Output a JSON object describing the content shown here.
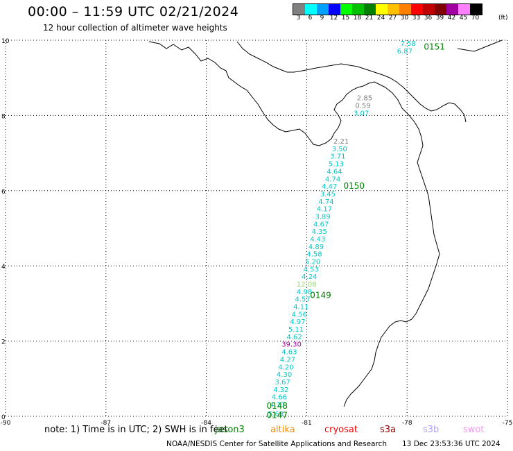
{
  "header": {
    "title": "00:00 – 11:59 UTC 02/21/2024",
    "subtitle": "12 hour collection of altimeter wave heights"
  },
  "legend": {
    "unit": "(ft)",
    "items": [
      {
        "label": "3",
        "color": "#808080"
      },
      {
        "label": "6",
        "color": "#00ffff"
      },
      {
        "label": "9",
        "color": "#00a0ff"
      },
      {
        "label": "12",
        "color": "#0000ff"
      },
      {
        "label": "15",
        "color": "#00ff00"
      },
      {
        "label": "18",
        "color": "#00c000"
      },
      {
        "label": "21",
        "color": "#008000"
      },
      {
        "label": "24",
        "color": "#ffff00"
      },
      {
        "label": "27",
        "color": "#ffc000"
      },
      {
        "label": "30",
        "color": "#ff8000"
      },
      {
        "label": "33",
        "color": "#ff0000"
      },
      {
        "label": "36",
        "color": "#c00000"
      },
      {
        "label": "39",
        "color": "#800000"
      },
      {
        "label": "42",
        "color": "#a000a0"
      },
      {
        "label": "45",
        "color": "#ff80ff"
      },
      {
        "label": "70",
        "color": "#000000"
      }
    ]
  },
  "axes": {
    "lon_ticks": [
      "-90",
      "-87",
      "-84",
      "-81",
      "-78",
      "-75"
    ],
    "lat_ticks": [
      "10",
      "8",
      "6",
      "4",
      "2",
      "0"
    ]
  },
  "passes": [
    {
      "label": "0151",
      "lon": -77.5,
      "lat": 9.75
    },
    {
      "label": "0150",
      "lon": -79.9,
      "lat": 6.05
    },
    {
      "label": "0149",
      "lon": -80.9,
      "lat": 3.15
    },
    {
      "label": "0148",
      "lon": -82.2,
      "lat": 0.2
    },
    {
      "label": "0147",
      "lon": -82.2,
      "lat": -0.05
    }
  ],
  "wave_heights": [
    {
      "v": "7.58",
      "lon": -78.2,
      "lat": 9.85,
      "c": "#00c8c8"
    },
    {
      "v": "6.87",
      "lon": -78.3,
      "lat": 9.65,
      "c": "#00c8c8"
    },
    {
      "v": "2.85",
      "lon": -79.5,
      "lat": 8.4,
      "c": "#808080"
    },
    {
      "v": "0.59",
      "lon": -79.55,
      "lat": 8.2,
      "c": "#808080"
    },
    {
      "v": "3.07",
      "lon": -79.6,
      "lat": 8.0,
      "c": "#00c8c8"
    },
    {
      "v": "2.21",
      "lon": -80.2,
      "lat": 7.25,
      "c": "#808080"
    },
    {
      "v": "3.50",
      "lon": -80.25,
      "lat": 7.05,
      "c": "#00c8c8"
    },
    {
      "v": "3.71",
      "lon": -80.3,
      "lat": 6.85,
      "c": "#00c8c8"
    },
    {
      "v": "5.13",
      "lon": -80.35,
      "lat": 6.65,
      "c": "#00c8c8"
    },
    {
      "v": "4.64",
      "lon": -80.4,
      "lat": 6.45,
      "c": "#00c8c8"
    },
    {
      "v": "4.74",
      "lon": -80.45,
      "lat": 6.25,
      "c": "#00c8c8"
    },
    {
      "v": "4.47",
      "lon": -80.55,
      "lat": 6.05,
      "c": "#00c8c8"
    },
    {
      "v": "3.45",
      "lon": -80.6,
      "lat": 5.85,
      "c": "#00c8c8"
    },
    {
      "v": "4.74",
      "lon": -80.65,
      "lat": 5.65,
      "c": "#00c8c8"
    },
    {
      "v": "4.17",
      "lon": -80.7,
      "lat": 5.45,
      "c": "#00c8c8"
    },
    {
      "v": "3.89",
      "lon": -80.75,
      "lat": 5.25,
      "c": "#00c8c8"
    },
    {
      "v": "4.67",
      "lon": -80.8,
      "lat": 5.05,
      "c": "#00c8c8"
    },
    {
      "v": "4.35",
      "lon": -80.85,
      "lat": 4.85,
      "c": "#00c8c8"
    },
    {
      "v": "4.43",
      "lon": -80.9,
      "lat": 4.65,
      "c": "#00c8c8"
    },
    {
      "v": "4.89",
      "lon": -80.95,
      "lat": 4.45,
      "c": "#00c8c8"
    },
    {
      "v": "4.58",
      "lon": -81.0,
      "lat": 4.25,
      "c": "#00c8c8"
    },
    {
      "v": "5.20",
      "lon": -81.05,
      "lat": 4.05,
      "c": "#00c8c8"
    },
    {
      "v": "4.53",
      "lon": -81.1,
      "lat": 3.85,
      "c": "#00c8c8"
    },
    {
      "v": "4.24",
      "lon": -81.15,
      "lat": 3.65,
      "c": "#00c8c8"
    },
    {
      "v": "12.08",
      "lon": -81.3,
      "lat": 3.45,
      "c": "#90d860"
    },
    {
      "v": "4.98",
      "lon": -81.3,
      "lat": 3.25,
      "c": "#00c8c8"
    },
    {
      "v": "4.57",
      "lon": -81.35,
      "lat": 3.05,
      "c": "#00c8c8"
    },
    {
      "v": "4.11",
      "lon": -81.4,
      "lat": 2.85,
      "c": "#00c8c8"
    },
    {
      "v": "4.56",
      "lon": -81.45,
      "lat": 2.65,
      "c": "#00c8c8"
    },
    {
      "v": "4.97",
      "lon": -81.5,
      "lat": 2.45,
      "c": "#00c8c8"
    },
    {
      "v": "5.11",
      "lon": -81.55,
      "lat": 2.25,
      "c": "#00c8c8"
    },
    {
      "v": "4.62",
      "lon": -81.6,
      "lat": 2.05,
      "c": "#00c8c8"
    },
    {
      "v": "39.30",
      "lon": -81.75,
      "lat": 1.85,
      "c": "#a000a0"
    },
    {
      "v": "4.63",
      "lon": -81.75,
      "lat": 1.65,
      "c": "#00c8c8"
    },
    {
      "v": "4.27",
      "lon": -81.8,
      "lat": 1.45,
      "c": "#00c8c8"
    },
    {
      "v": "4.20",
      "lon": -81.85,
      "lat": 1.25,
      "c": "#00c8c8"
    },
    {
      "v": "4.30",
      "lon": -81.9,
      "lat": 1.05,
      "c": "#00c8c8"
    },
    {
      "v": "3.67",
      "lon": -81.95,
      "lat": 0.85,
      "c": "#00c8c8"
    },
    {
      "v": "4.32",
      "lon": -82.0,
      "lat": 0.65,
      "c": "#00c8c8"
    },
    {
      "v": "4.66",
      "lon": -82.05,
      "lat": 0.45,
      "c": "#00c8c8"
    },
    {
      "v": "4.17",
      "lon": -82.1,
      "lat": 0.25,
      "c": "#00c8c8"
    },
    {
      "v": "5.68",
      "lon": -82.15,
      "lat": 0.0,
      "c": "#00c8c8"
    }
  ],
  "footer": {
    "note": "note:  1) Time is in UTC; 2) SWH is in feet",
    "satellites": [
      {
        "name": "jason3",
        "color": "#008000"
      },
      {
        "name": "altika",
        "color": "#ff8c00"
      },
      {
        "name": "cryosat",
        "color": "#ff0000"
      },
      {
        "name": "s3a",
        "color": "#8b0000"
      },
      {
        "name": "s3b",
        "color": "#b0a0ff"
      },
      {
        "name": "swot",
        "color": "#ff90ff"
      }
    ],
    "credit": "NOAA/NESDIS Center for Satellite Applications and Research",
    "timestamp": "13 Dec 23:53:36 UTC 2024"
  }
}
